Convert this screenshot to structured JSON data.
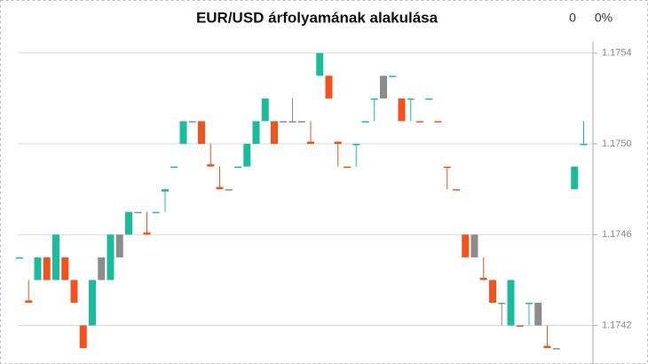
{
  "chart_data": {
    "type": "candlestick",
    "title": "EUR/USD árfolyamának alakulása",
    "change": "0",
    "change_percent": "0%",
    "open": [
      1.1745,
      1.17431,
      1.1744,
      1.1745,
      1.1744,
      1.1745,
      1.1744,
      1.1742,
      1.1742,
      1.1744,
      1.1744,
      1.1746,
      1.1746,
      1.1747,
      1.17461,
      1.1747,
      1.17479,
      1.1749,
      1.175,
      1.1751,
      1.1751,
      1.17491,
      1.17481,
      1.1748,
      1.1749,
      1.1749,
      1.175,
      1.1751,
      1.1751,
      1.1751,
      1.1751,
      1.1751,
      1.17501,
      1.1753,
      1.1753,
      1.17501,
      1.1749,
      1.175,
      1.1751,
      1.1752,
      1.1753,
      1.1753,
      1.1752,
      1.1752,
      1.1751,
      1.1752,
      1.1751,
      1.1749,
      1.1748,
      1.1746,
      1.1746,
      1.17441,
      1.1744,
      1.1743,
      1.1742,
      1.1742,
      1.1743,
      1.1743,
      1.17411,
      1.1741,
      null,
      1.1748,
      1.175
    ],
    "high": [
      1.1745,
      1.1744,
      1.1745,
      1.1745,
      1.1746,
      1.1745,
      1.1744,
      1.1742,
      1.1744,
      1.1745,
      1.1746,
      1.1746,
      1.1747,
      1.1747,
      1.1747,
      1.1747,
      1.1748,
      1.1749,
      1.1751,
      1.1751,
      1.1751,
      1.175,
      1.1749,
      1.1748,
      1.1749,
      1.175,
      1.1751,
      1.1752,
      1.1751,
      1.1751,
      1.1752,
      1.1751,
      1.1751,
      1.1754,
      1.1753,
      1.17501,
      1.1749,
      1.175,
      1.1751,
      1.1752,
      1.1753,
      1.1753,
      1.1752,
      1.1752,
      1.1751,
      1.1752,
      1.1751,
      1.1749,
      1.1748,
      1.1746,
      1.1746,
      1.1745,
      1.1744,
      1.1743,
      1.1744,
      1.1742,
      1.1743,
      1.1743,
      1.1742,
      1.1741,
      null,
      1.1749,
      1.1751
    ],
    "low": [
      1.1745,
      1.1743,
      1.1744,
      1.1744,
      1.1744,
      1.1744,
      1.1743,
      1.1741,
      1.1742,
      1.1744,
      1.1744,
      1.1745,
      1.1746,
      1.1747,
      1.1746,
      1.1747,
      1.1747,
      1.1749,
      1.175,
      1.1751,
      1.175,
      1.1749,
      1.1748,
      1.1748,
      1.1749,
      1.1749,
      1.175,
      1.1751,
      1.175,
      1.1751,
      1.1751,
      1.1751,
      1.175,
      1.1753,
      1.1752,
      1.1749,
      1.1749,
      1.1749,
      1.1751,
      1.1751,
      1.1752,
      1.1753,
      1.1751,
      1.1751,
      1.1751,
      1.1752,
      1.1751,
      1.1748,
      1.1748,
      1.1745,
      1.1745,
      1.1744,
      1.1743,
      1.1742,
      1.1742,
      1.1742,
      1.1742,
      1.1742,
      1.1741,
      1.1741,
      null,
      1.1748,
      1.175
    ],
    "close": [
      1.1745,
      1.1743,
      1.1745,
      1.1744,
      1.1746,
      1.1744,
      1.1743,
      1.1741,
      1.1744,
      1.1745,
      1.1746,
      1.1745,
      1.1747,
      1.1747,
      1.1746,
      1.1747,
      1.1748,
      1.1749,
      1.1751,
      1.1751,
      1.175,
      1.1749,
      1.1748,
      1.1748,
      1.1749,
      1.175,
      1.1751,
      1.1752,
      1.175,
      1.1751,
      1.1751,
      1.1751,
      1.175,
      1.1754,
      1.1752,
      1.175,
      1.1749,
      1.175,
      1.1751,
      1.1752,
      1.1752,
      1.1753,
      1.1751,
      1.1752,
      1.1751,
      1.1752,
      1.1751,
      1.1749,
      1.1748,
      1.1745,
      1.1745,
      1.1744,
      1.1743,
      1.1743,
      1.1744,
      1.1742,
      1.1743,
      1.1742,
      1.1741,
      1.1741,
      null,
      1.1749,
      1.175
    ],
    "colors": [
      "#1abc9c",
      "#f4511e",
      "#1abc9c",
      "#f4511e",
      "#1abc9c",
      "#f4511e",
      "#f4511e",
      "#f4511e",
      "#1abc9c",
      "#8c8c8c",
      "#1abc9c",
      "#8c8c8c",
      "#1abc9c",
      "#8c8c8c",
      "#f4511e",
      "#1abc9c",
      "#1abc9c",
      "#1abc9c",
      "#1abc9c",
      "#8c8c8c",
      "#f4511e",
      "#f4511e",
      "#f4511e",
      "#8c8c8c",
      "#1abc9c",
      "#1abc9c",
      "#1abc9c",
      "#1abc9c",
      "#f4511e",
      "#8c8c8c",
      "#8c8c8c",
      "#8c8c8c",
      "#f4511e",
      "#1abc9c",
      "#f4511e",
      "#f4511e",
      "#f4511e",
      "#1abc9c",
      "#1abc9c",
      "#1abc9c",
      "#8c8c8c",
      "#1abc9c",
      "#f4511e",
      "#1abc9c",
      "#f4511e",
      "#1abc9c",
      "#f4511e",
      "#f4511e",
      "#f4511e",
      "#f4511e",
      "#8c8c8c",
      "#f4511e",
      "#f4511e",
      "#8c8c8c",
      "#1abc9c",
      "#f4511e",
      "#1abc9c",
      "#8c8c8c",
      "#f4511e",
      "#8c8c8c",
      null,
      "#1abc9c",
      "#1abc9c"
    ],
    "ylim": [
      1.17403,
      1.17545
    ],
    "yticks": [
      1.1742,
      1.1746,
      {
        "value": 1.175,
        "label": "1.1750"
      },
      1.1754
    ],
    "grid": true
  }
}
